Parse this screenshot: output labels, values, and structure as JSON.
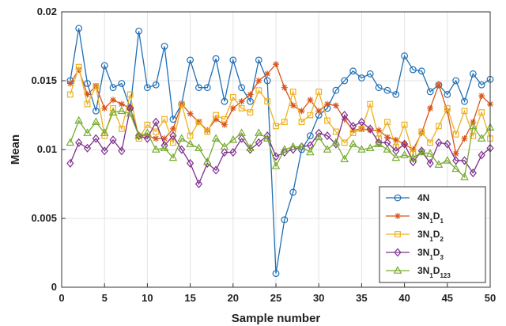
{
  "chart_data": {
    "type": "line",
    "title": "",
    "xlabel": "Sample number",
    "ylabel": "Mean",
    "xlim": [
      0,
      50
    ],
    "ylim": [
      0,
      0.02
    ],
    "xticks": [
      0,
      5,
      10,
      15,
      20,
      25,
      30,
      35,
      40,
      45,
      50
    ],
    "yticks": [
      0,
      0.005,
      0.01,
      0.015,
      0.02
    ],
    "xtick_labels": [
      "0",
      "5",
      "10",
      "15",
      "20",
      "25",
      "30",
      "35",
      "40",
      "45",
      "50"
    ],
    "ytick_labels": [
      "0",
      "0.005",
      "0.01",
      "0.015",
      "0.02"
    ],
    "grid": true,
    "legend_position": "bottom-right",
    "x": [
      1,
      2,
      3,
      4,
      5,
      6,
      7,
      8,
      9,
      10,
      11,
      12,
      13,
      14,
      15,
      16,
      17,
      18,
      19,
      20,
      21,
      22,
      23,
      24,
      25,
      26,
      27,
      28,
      29,
      30,
      31,
      32,
      33,
      34,
      35,
      36,
      37,
      38,
      39,
      40,
      41,
      42,
      43,
      44,
      45,
      46,
      47,
      48,
      49,
      50
    ],
    "series": [
      {
        "name": "4N",
        "legend_main": "4N",
        "legend_sub": "",
        "color": "#1f6fb5",
        "marker": "circle",
        "values": [
          0.015,
          0.0188,
          0.0148,
          0.0128,
          0.0161,
          0.0145,
          0.0148,
          0.013,
          0.0186,
          0.0145,
          0.0147,
          0.0175,
          0.0122,
          0.0133,
          0.0165,
          0.0145,
          0.0145,
          0.0166,
          0.0135,
          0.0165,
          0.0145,
          0.0135,
          0.0165,
          0.015,
          0.001,
          0.0049,
          0.0069,
          0.01,
          0.011,
          0.0125,
          0.013,
          0.0143,
          0.015,
          0.0157,
          0.0152,
          0.0155,
          0.0145,
          0.0143,
          0.014,
          0.0168,
          0.0158,
          0.0157,
          0.0142,
          0.0147,
          0.014,
          0.015,
          0.0135,
          0.0155,
          0.0147,
          0.0151
        ]
      },
      {
        "name": "3N1D1",
        "legend_main": "3N",
        "legend_sub": "1",
        "legend_main2": "D",
        "legend_sub2": "1",
        "color": "#d95319",
        "marker": "star",
        "values": [
          0.0148,
          0.0158,
          0.014,
          0.0146,
          0.013,
          0.0136,
          0.0133,
          0.013,
          0.011,
          0.011,
          0.0108,
          0.0108,
          0.0115,
          0.0133,
          0.0126,
          0.012,
          0.0114,
          0.0122,
          0.0118,
          0.013,
          0.0135,
          0.014,
          0.015,
          0.0155,
          0.0162,
          0.0145,
          0.0132,
          0.0128,
          0.0136,
          0.0128,
          0.0133,
          0.0132,
          0.0122,
          0.0114,
          0.0115,
          0.0114,
          0.0114,
          0.0109,
          0.0107,
          0.0104,
          0.01,
          0.0112,
          0.013,
          0.0147,
          0.0128,
          0.0097,
          0.0108,
          0.012,
          0.0139,
          0.0133
        ]
      },
      {
        "name": "3N1D2",
        "legend_main": "3N",
        "legend_sub": "1",
        "legend_main2": "D",
        "legend_sub2": "2",
        "color": "#edb120",
        "marker": "square",
        "values": [
          0.014,
          0.016,
          0.0133,
          0.0146,
          0.011,
          0.013,
          0.0115,
          0.014,
          0.0108,
          0.0118,
          0.0113,
          0.0122,
          0.0105,
          0.0133,
          0.011,
          0.012,
          0.0113,
          0.0125,
          0.0122,
          0.0138,
          0.013,
          0.0127,
          0.0143,
          0.0135,
          0.0117,
          0.012,
          0.0142,
          0.012,
          0.0125,
          0.0142,
          0.0121,
          0.0113,
          0.0105,
          0.0112,
          0.0115,
          0.0133,
          0.0108,
          0.012,
          0.0102,
          0.0118,
          0.0097,
          0.0113,
          0.0105,
          0.0117,
          0.013,
          0.0111,
          0.0128,
          0.011,
          0.0127,
          0.0108
        ]
      },
      {
        "name": "3N1D3",
        "legend_main": "3N",
        "legend_sub": "1",
        "legend_main2": "D",
        "legend_sub2": "3",
        "color": "#7e2f8e",
        "marker": "diamond",
        "values": [
          0.009,
          0.0105,
          0.0101,
          0.0108,
          0.0099,
          0.0107,
          0.0099,
          0.013,
          0.011,
          0.0108,
          0.012,
          0.0103,
          0.011,
          0.01,
          0.009,
          0.0075,
          0.009,
          0.0085,
          0.0098,
          0.0098,
          0.0108,
          0.01,
          0.0105,
          0.011,
          0.0095,
          0.0098,
          0.01,
          0.0102,
          0.0103,
          0.0112,
          0.011,
          0.0104,
          0.0125,
          0.0117,
          0.012,
          0.0115,
          0.0105,
          0.0105,
          0.0099,
          0.0104,
          0.0091,
          0.0099,
          0.009,
          0.0105,
          0.0104,
          0.0092,
          0.0092,
          0.0083,
          0.0096,
          0.0101
        ]
      },
      {
        "name": "3N1D123",
        "legend_main": "3N",
        "legend_sub": "1",
        "legend_main2": "D",
        "legend_sub2": "123",
        "color": "#77ac30",
        "marker": "triangle",
        "values": [
          0.0105,
          0.0121,
          0.0112,
          0.012,
          0.0112,
          0.0127,
          0.0128,
          0.0126,
          0.011,
          0.0112,
          0.01,
          0.0101,
          0.0094,
          0.0108,
          0.0104,
          0.0101,
          0.0091,
          0.0108,
          0.0102,
          0.0107,
          0.0112,
          0.0101,
          0.0112,
          0.0108,
          0.0088,
          0.01,
          0.0102,
          0.0102,
          0.0098,
          0.0109,
          0.01,
          0.0105,
          0.0093,
          0.0104,
          0.01,
          0.0101,
          0.0104,
          0.01,
          0.0094,
          0.0096,
          0.0094,
          0.0098,
          0.0097,
          0.0089,
          0.0092,
          0.0086,
          0.008,
          0.0117,
          0.0108,
          0.0116
        ]
      }
    ]
  }
}
